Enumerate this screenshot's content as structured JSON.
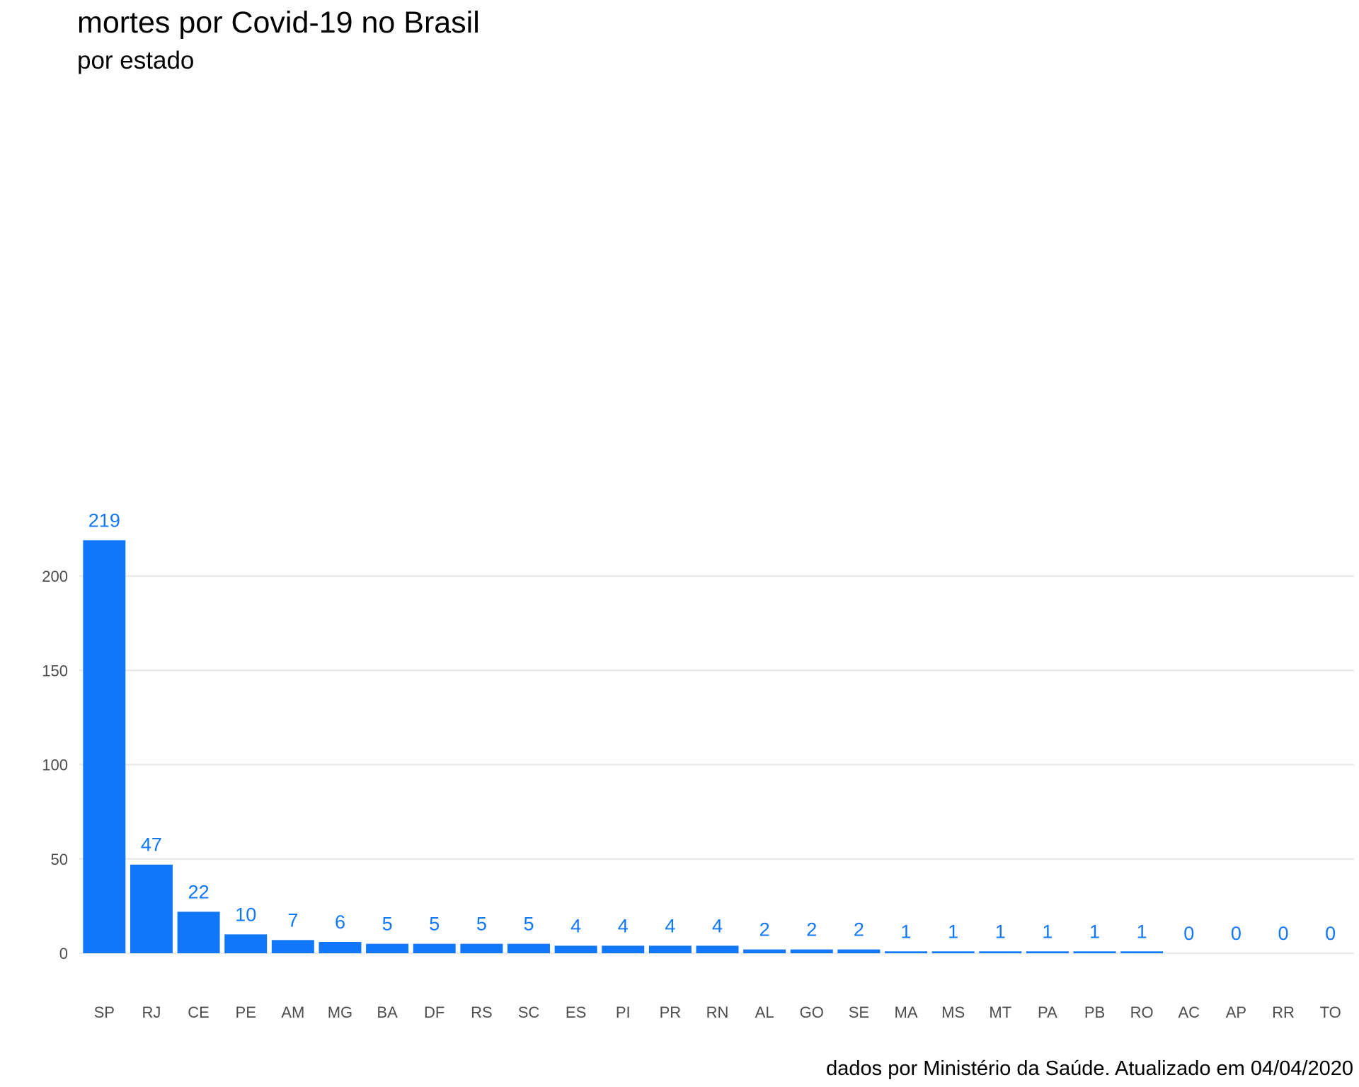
{
  "chart_data": {
    "type": "bar",
    "title": "mortes por Covid-19 no Brasil",
    "subtitle": "por estado",
    "caption": "dados por Ministério da Saúde. Atualizado em 04/04/2020",
    "xlabel": "",
    "ylabel": "",
    "categories": [
      "SP",
      "RJ",
      "CE",
      "PE",
      "AM",
      "MG",
      "BA",
      "DF",
      "RS",
      "SC",
      "ES",
      "PI",
      "PR",
      "RN",
      "AL",
      "GO",
      "SE",
      "MA",
      "MS",
      "MT",
      "PA",
      "PB",
      "RO",
      "AC",
      "AP",
      "RR",
      "TO"
    ],
    "values": [
      219,
      47,
      22,
      10,
      7,
      6,
      5,
      5,
      5,
      5,
      4,
      4,
      4,
      4,
      2,
      2,
      2,
      1,
      1,
      1,
      1,
      1,
      1,
      0,
      0,
      0,
      0
    ],
    "ylim": [
      0,
      219
    ],
    "yticks": [
      0,
      50,
      100,
      150,
      200
    ],
    "grid": true,
    "bar_color": "#1177fa",
    "label_color": "#1177fa"
  }
}
